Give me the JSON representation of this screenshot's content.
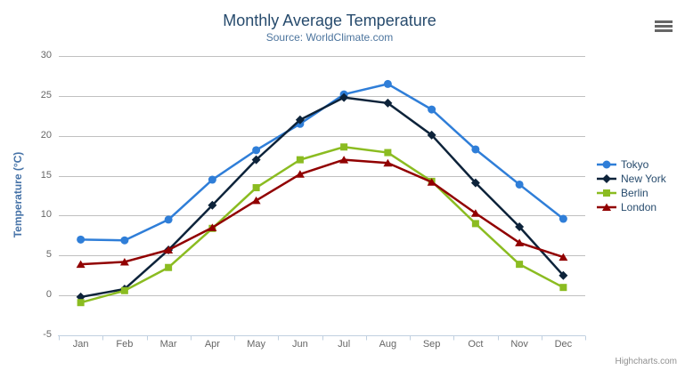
{
  "header": {
    "title": "Monthly Average Temperature",
    "subtitle": "Source: WorldClimate.com"
  },
  "icons": {
    "context_menu": "hamburger-icon"
  },
  "credits": "Highcharts.com",
  "colors": {
    "title_text": "#274b6d",
    "subtitle_text": "#4d759e",
    "axis_title_text": "#4572a7",
    "tick_label_text": "#666666",
    "legend_text": "#274b6d",
    "gridline": "#c0c0c0",
    "axis_line": "#c0d0e0",
    "menu_icon": "#666666",
    "background": "#ffffff"
  },
  "chart_data": {
    "type": "line",
    "title": "Monthly Average Temperature",
    "subtitle": "Source: WorldClimate.com",
    "xlabel": "",
    "ylabel": "Temperature (°C)",
    "categories": [
      "Jan",
      "Feb",
      "Mar",
      "Apr",
      "May",
      "Jun",
      "Jul",
      "Aug",
      "Sep",
      "Oct",
      "Nov",
      "Dec"
    ],
    "ylim": [
      -5,
      30
    ],
    "ytick_step": 5,
    "grid": true,
    "legend_position": "right",
    "series": [
      {
        "name": "Tokyo",
        "color": "#2f7ed8",
        "marker": "circle",
        "values": [
          7.0,
          6.9,
          9.5,
          14.5,
          18.2,
          21.5,
          25.2,
          26.5,
          23.3,
          18.3,
          13.9,
          9.6
        ]
      },
      {
        "name": "New York",
        "color": "#0d233a",
        "marker": "diamond",
        "values": [
          -0.2,
          0.8,
          5.7,
          11.3,
          17.0,
          22.0,
          24.8,
          24.1,
          20.1,
          14.1,
          8.6,
          2.5
        ]
      },
      {
        "name": "Berlin",
        "color": "#8bbc21",
        "marker": "square",
        "values": [
          -0.9,
          0.6,
          3.5,
          8.4,
          13.5,
          17.0,
          18.6,
          17.9,
          14.3,
          9.0,
          3.9,
          1.0
        ]
      },
      {
        "name": "London",
        "color": "#910000",
        "marker": "triangle",
        "values": [
          3.9,
          4.2,
          5.7,
          8.5,
          11.9,
          15.2,
          17.0,
          16.6,
          14.2,
          10.3,
          6.6,
          4.8
        ]
      }
    ]
  }
}
